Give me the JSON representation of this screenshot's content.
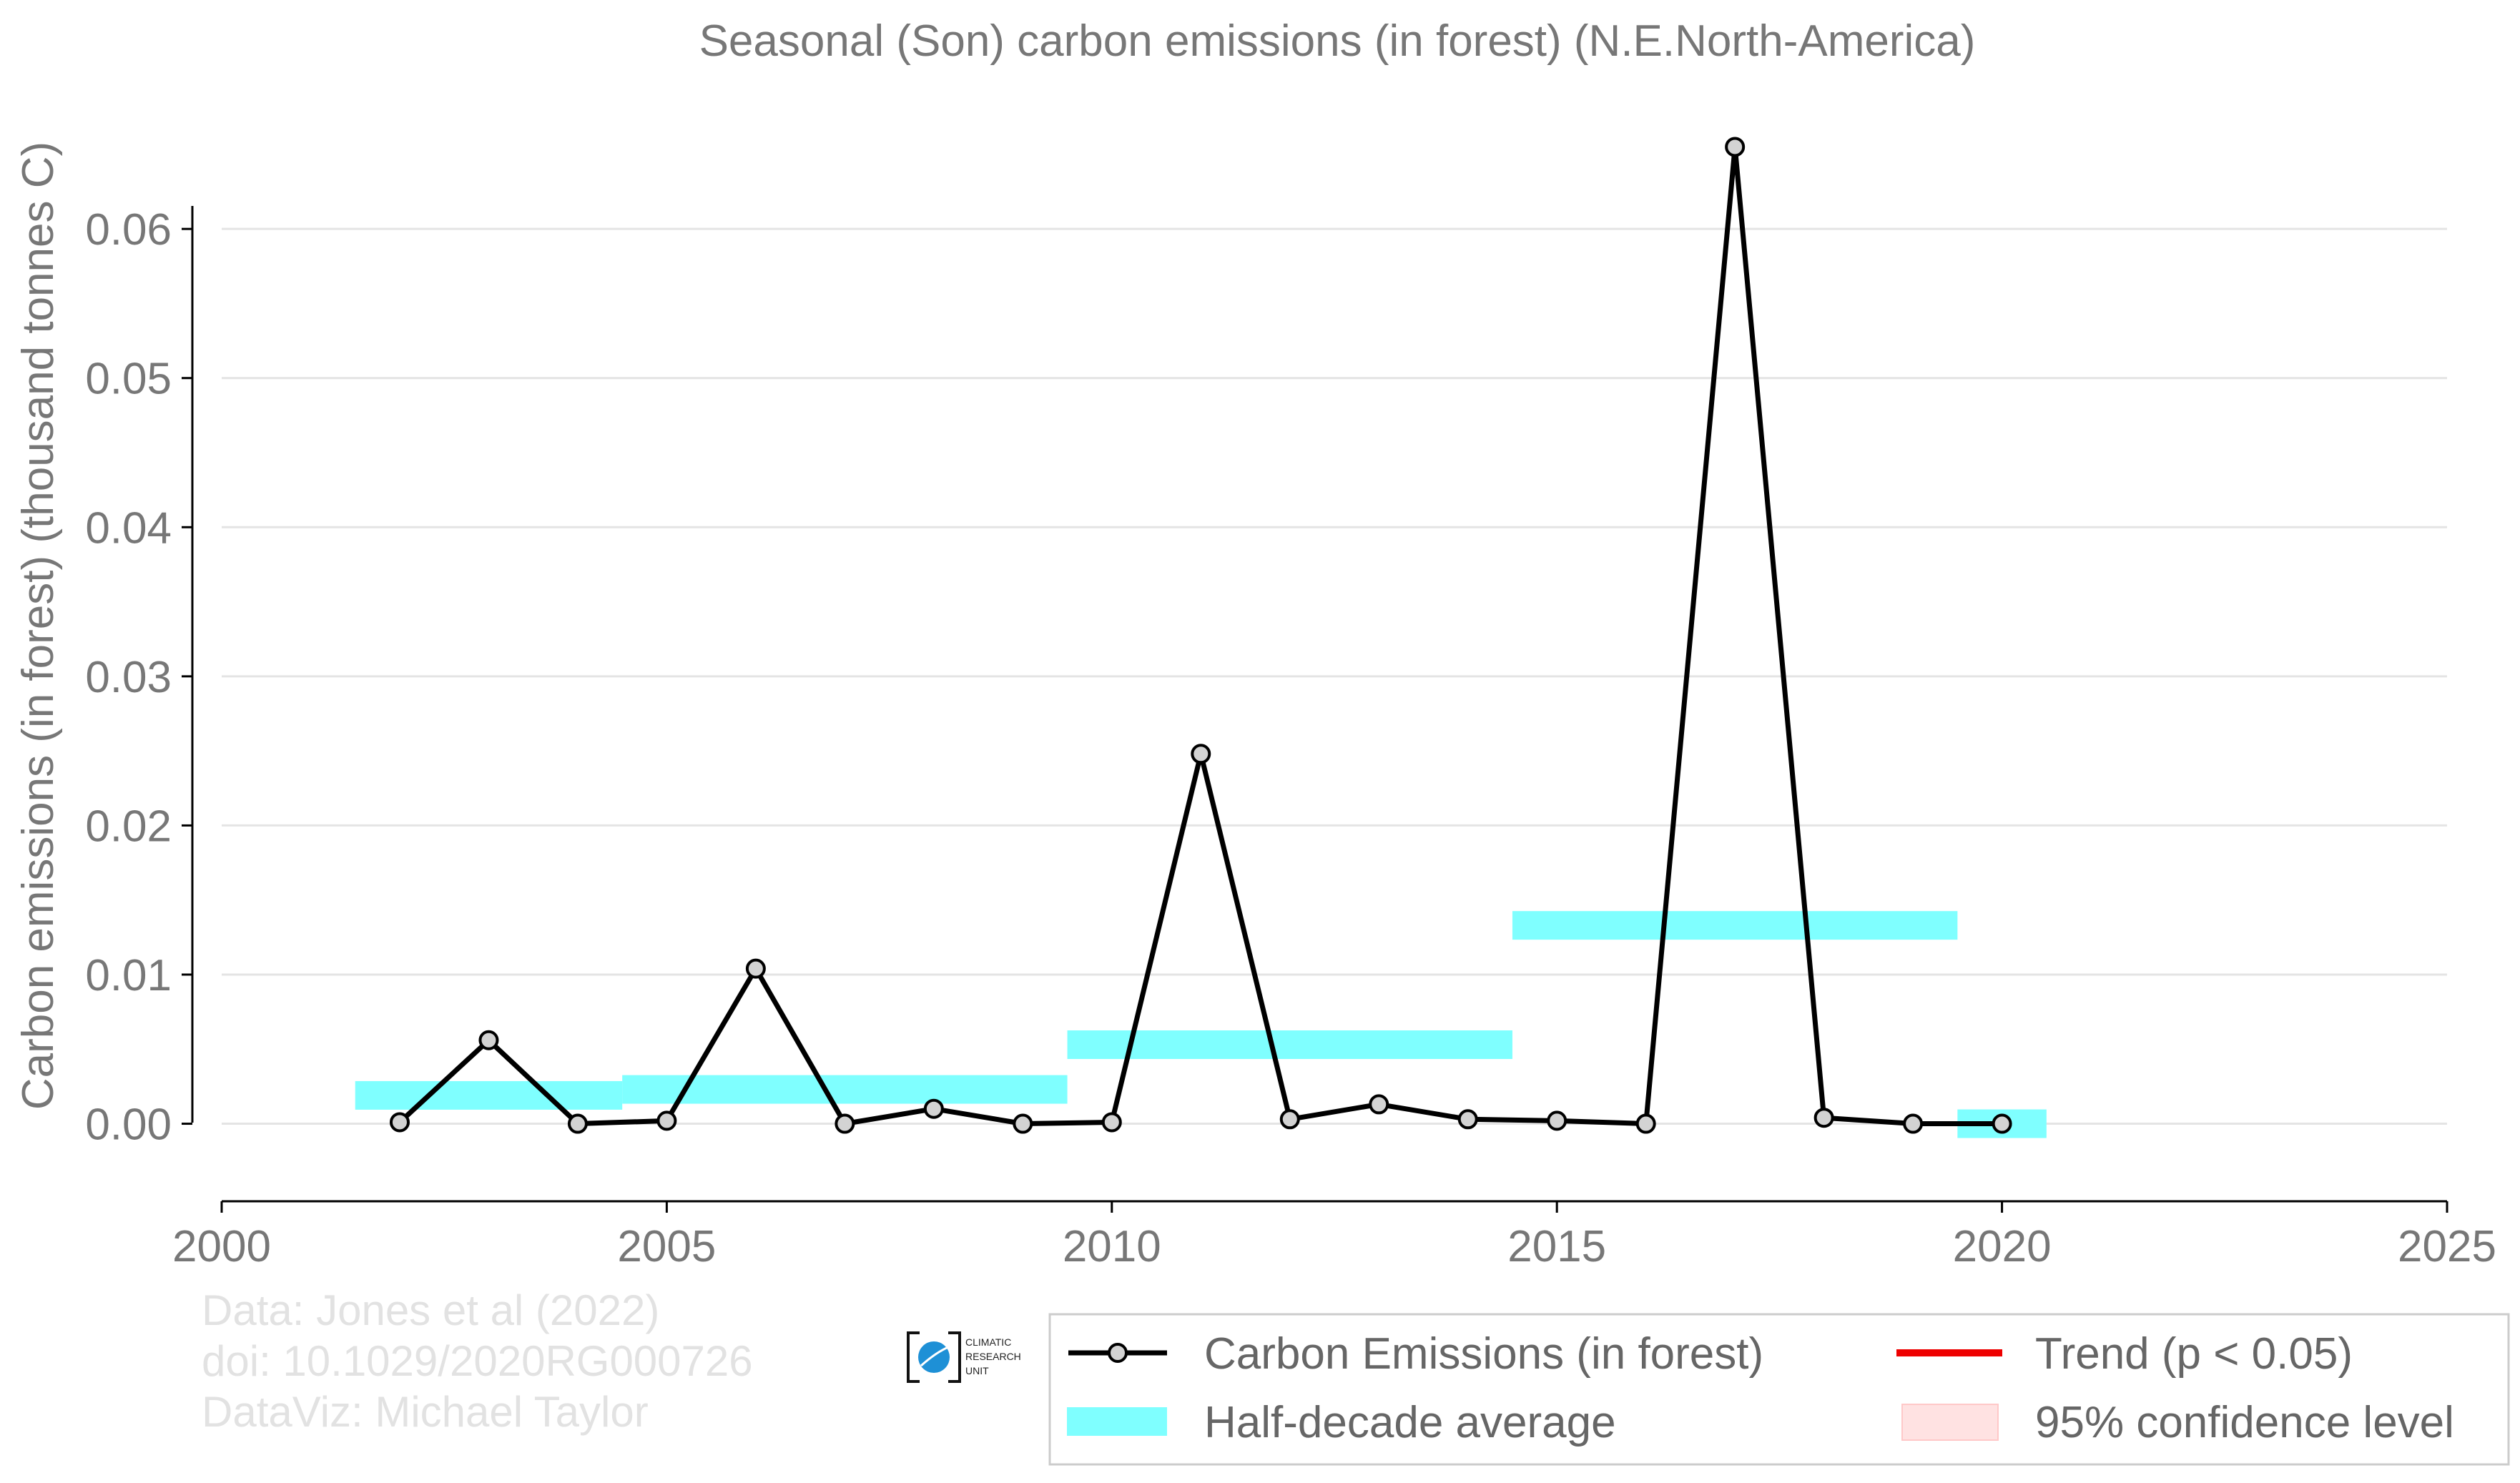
{
  "chart_data": {
    "type": "line",
    "title": "Seasonal (Son) carbon emissions (in forest) (N.E.North-America)",
    "xlabel": "",
    "ylabel": "Carbon emissions (in forest) (thousand tonnes C)",
    "xlim": [
      2000,
      2025
    ],
    "ylim": [
      -0.0052,
      0.0672
    ],
    "x_ticks": [
      2000,
      2005,
      2010,
      2015,
      2020,
      2025
    ],
    "y_ticks": [
      0.0,
      0.01,
      0.02,
      0.03,
      0.04,
      0.05,
      0.06
    ],
    "x_tick_labels": [
      "2000",
      "2005",
      "2010",
      "2015",
      "2020",
      "2025"
    ],
    "y_tick_labels": [
      "0.00",
      "0.01",
      "0.02",
      "0.03",
      "0.04",
      "0.05",
      "0.06"
    ],
    "grid": "horizontal",
    "legend_position": "bottom-right",
    "series": [
      {
        "name": "Carbon Emissions (in forest)",
        "kind": "line-markers",
        "color": "#000000",
        "marker_fill": "#d3d3d3",
        "x": [
          2002,
          2003,
          2004,
          2005,
          2006,
          2007,
          2008,
          2009,
          2010,
          2011,
          2012,
          2013,
          2014,
          2015,
          2016,
          2017,
          2018,
          2019,
          2020
        ],
        "y": [
          0.0001,
          0.0056,
          0.0,
          0.0002,
          0.0104,
          0.0,
          0.001,
          0.0,
          0.0001,
          0.0248,
          0.0003,
          0.0013,
          0.0003,
          0.0002,
          0.0,
          0.0655,
          0.0004,
          0.0,
          0.0
        ]
      },
      {
        "name": "Half-decade average",
        "kind": "horizontal-bars",
        "color": "#7fffff",
        "x_start": [
          2001.5,
          2004.5,
          2009.5,
          2014.5,
          2019.5
        ],
        "x_end": [
          2004.5,
          2009.5,
          2014.5,
          2019.5,
          2020.5
        ],
        "y": [
          0.0019,
          0.0023,
          0.0053,
          0.0133,
          0.0
        ]
      }
    ],
    "legend": [
      {
        "label": "Carbon Emissions (in forest)",
        "symbol": "line-marker",
        "color": "#000000"
      },
      {
        "label": "Trend (p < 0.05)",
        "symbol": "line",
        "color": "#ee0000"
      },
      {
        "label": "Half-decade average",
        "symbol": "band",
        "color": "#7fffff"
      },
      {
        "label": "95% confidence level",
        "symbol": "patch",
        "color": "#ffe2e2"
      }
    ]
  },
  "credits": [
    "Data: Jones et al (2022)",
    "doi: 10.1029/2020RG000726",
    "DataViz: Michael Taylor"
  ],
  "logo": {
    "name": "climatic-research-unit-logo",
    "lines": [
      "CLIMATIC",
      "RESEARCH",
      "UNIT"
    ],
    "color": "#1e90d6"
  }
}
